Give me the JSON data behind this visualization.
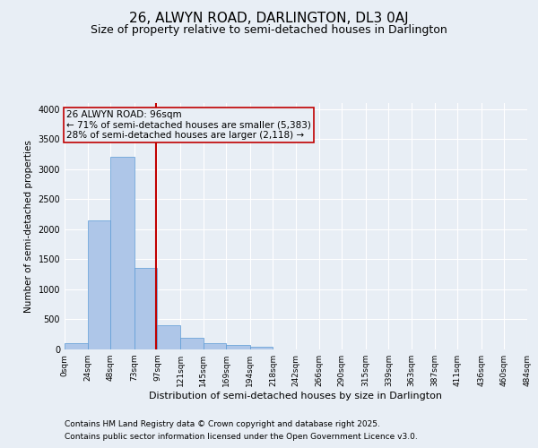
{
  "title": "26, ALWYN ROAD, DARLINGTON, DL3 0AJ",
  "subtitle": "Size of property relative to semi-detached houses in Darlington",
  "xlabel": "Distribution of semi-detached houses by size in Darlington",
  "ylabel": "Number of semi-detached properties",
  "footnote1": "Contains HM Land Registry data © Crown copyright and database right 2025.",
  "footnote2": "Contains public sector information licensed under the Open Government Licence v3.0.",
  "annotation_title": "26 ALWYN ROAD: 96sqm",
  "annotation_line2": "← 71% of semi-detached houses are smaller (5,383)",
  "annotation_line3": "28% of semi-detached houses are larger (2,118) →",
  "property_size": 96,
  "bin_edges": [
    0,
    24,
    48,
    73,
    97,
    121,
    145,
    169,
    194,
    218,
    242,
    266,
    290,
    315,
    339,
    363,
    387,
    411,
    436,
    460,
    484
  ],
  "bar_heights": [
    100,
    2150,
    3200,
    1350,
    400,
    200,
    100,
    75,
    50,
    0,
    0,
    0,
    0,
    0,
    0,
    0,
    0,
    0,
    0,
    0
  ],
  "bar_color": "#aec6e8",
  "bar_edge_color": "#5b9bd5",
  "vline_color": "#c00000",
  "vline_x": 96,
  "ylim": [
    0,
    4100
  ],
  "yticks": [
    0,
    500,
    1000,
    1500,
    2000,
    2500,
    3000,
    3500,
    4000
  ],
  "bg_color": "#e8eef5",
  "plot_bg_color": "#e8eef5",
  "grid_color": "#ffffff",
  "title_fontsize": 11,
  "subtitle_fontsize": 9,
  "annotation_fontsize": 7.5,
  "footnote_fontsize": 6.5,
  "xlabel_fontsize": 8,
  "ylabel_fontsize": 7.5,
  "tick_fontsize": 6.5,
  "ytick_fontsize": 7
}
